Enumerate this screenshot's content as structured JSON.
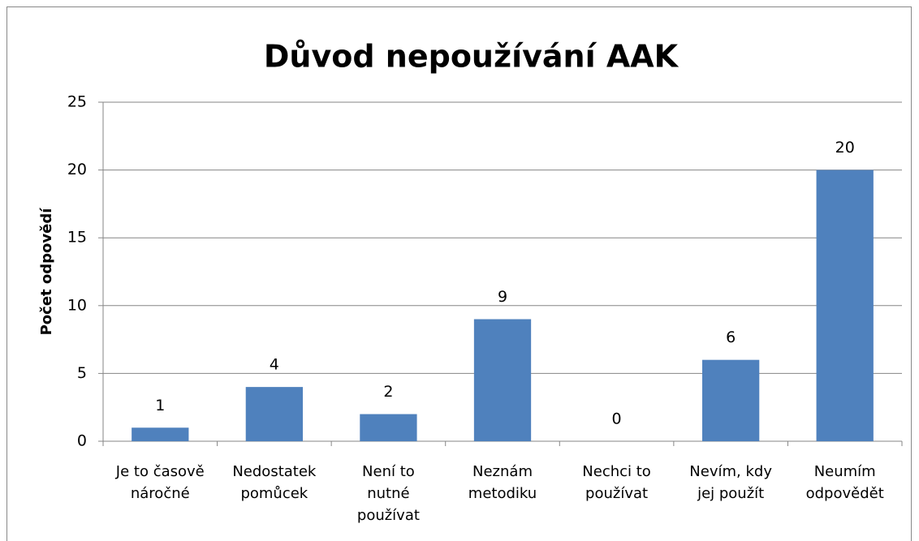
{
  "chart_data": {
    "type": "bar",
    "title": "Důvod nepoužívání AAK",
    "y_label": "Počet odpovědí",
    "categories": [
      "Je to časově\nnáročné",
      "Nedostatek\npomůcek",
      "Není to\nnutné\npoužívat",
      "Neznám\nmetodiku",
      "Nechci to\npoužívat",
      "Nevím, kdy\njej použít",
      "Neumím\nodpovědět"
    ],
    "values": [
      1,
      4,
      2,
      9,
      0,
      6,
      20
    ],
    "color": "#4f81bd",
    "ylim": [
      0,
      25
    ],
    "yticks": [
      0,
      5,
      10,
      15,
      20,
      25
    ],
    "grid": true
  }
}
